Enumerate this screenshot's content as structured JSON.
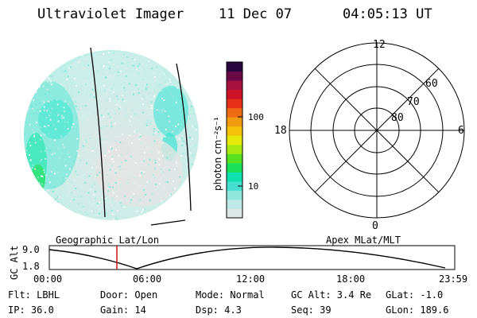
{
  "header": {
    "instrument": "Ultraviolet Imager",
    "date": "11 Dec 07",
    "time": "04:05:13 UT"
  },
  "colorbar": {
    "label": "photon cm⁻²s⁻¹",
    "ticks": [
      "100",
      "10"
    ],
    "scale": "log",
    "colors": [
      "#dde8e6",
      "#bfe9e6",
      "#8fe8de",
      "#45dfd0",
      "#10e0b0",
      "#18e058",
      "#56e020",
      "#a8ea10",
      "#e6e80a",
      "#f6c20a",
      "#f29a10",
      "#ee6a14",
      "#e63018",
      "#cc1426",
      "#a81040",
      "#6a0848",
      "#2a0640"
    ]
  },
  "polar": {
    "lat_labels": [
      "80",
      "70",
      "60"
    ],
    "mlt_labels": {
      "top": "12",
      "left": "18",
      "right": "6",
      "bottom": "0"
    }
  },
  "timeline": {
    "left_label": "Geographic Lat/Lon",
    "right_label": "Apex MLat/MLT",
    "yaxis_label": "GC Alt",
    "y_ticks": [
      "9.0",
      "1.8"
    ],
    "x_ticks": [
      "00:00",
      "06:00",
      "12:00",
      "18:00",
      "23:59"
    ],
    "marker_color": "#c81414"
  },
  "status": {
    "flt": "Flt: LBHL",
    "ip": "IP: 36.0",
    "door": "Door: Open",
    "gain": "Gain: 14",
    "mode": "Mode: Normal",
    "dsp": "Dsp:    4.3",
    "gcalt": "GC Alt: 3.4 Re",
    "seq": "Seq: 39",
    "glat": "GLat:  -1.0",
    "glon": "GLon: 189.6"
  }
}
